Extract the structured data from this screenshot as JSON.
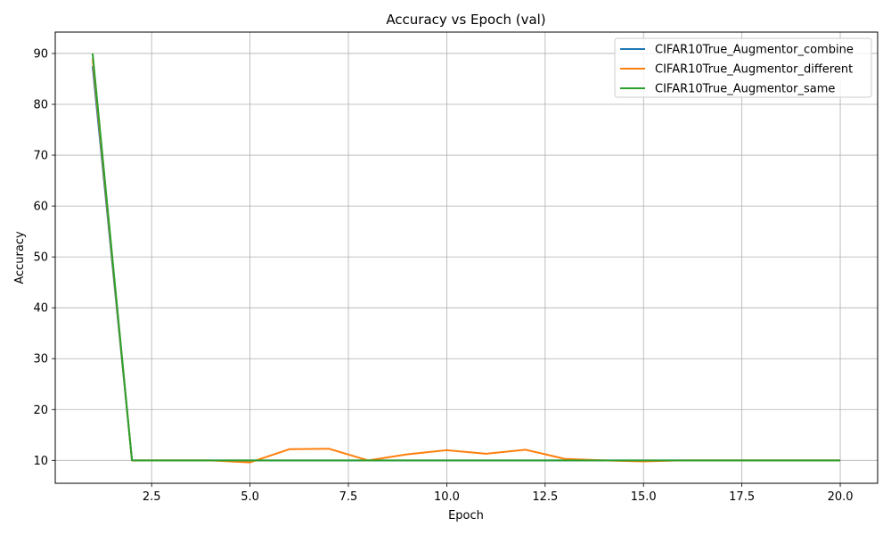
{
  "chart_data": {
    "type": "line",
    "title": "Accuracy vs Epoch (val)",
    "xlabel": "Epoch",
    "ylabel": "Accuracy",
    "xlim": [
      0.05,
      20.95
    ],
    "ylim": [
      5.5,
      94.2
    ],
    "xticks": [
      2.5,
      5.0,
      7.5,
      10.0,
      12.5,
      15.0,
      17.5,
      20.0
    ],
    "xtick_labels": [
      "2.5",
      "5.0",
      "7.5",
      "10.0",
      "12.5",
      "15.0",
      "17.5",
      "20.0"
    ],
    "yticks": [
      10,
      20,
      30,
      40,
      50,
      60,
      70,
      80,
      90
    ],
    "ytick_labels": [
      "10",
      "20",
      "30",
      "40",
      "50",
      "60",
      "70",
      "80",
      "90"
    ],
    "grid": true,
    "legend_position": "top-right",
    "x": [
      1,
      2,
      3,
      4,
      5,
      6,
      7,
      8,
      9,
      10,
      11,
      12,
      13,
      14,
      15,
      16,
      17,
      18,
      19,
      20
    ],
    "series": [
      {
        "name": "CIFAR10True_Augmentor_combine",
        "color": "#1f77b4",
        "values": [
          87.5,
          10,
          10,
          10,
          10,
          10,
          10,
          10,
          10,
          10,
          10,
          10,
          10,
          10,
          10,
          10,
          10,
          10,
          10,
          10
        ]
      },
      {
        "name": "CIFAR10True_Augmentor_different",
        "color": "#ff7f0e",
        "values": [
          89.0,
          10,
          10,
          10,
          9.6,
          12.2,
          12.3,
          10,
          11.2,
          12.0,
          11.3,
          12.1,
          10.3,
          10,
          9.8,
          10,
          10,
          10,
          10,
          10
        ]
      },
      {
        "name": "CIFAR10True_Augmentor_same",
        "color": "#2ca02c",
        "values": [
          90.0,
          10,
          10,
          10,
          10,
          10,
          10,
          10,
          10,
          10,
          10,
          10,
          10,
          10,
          10,
          10,
          10,
          10,
          10,
          10
        ]
      }
    ]
  }
}
